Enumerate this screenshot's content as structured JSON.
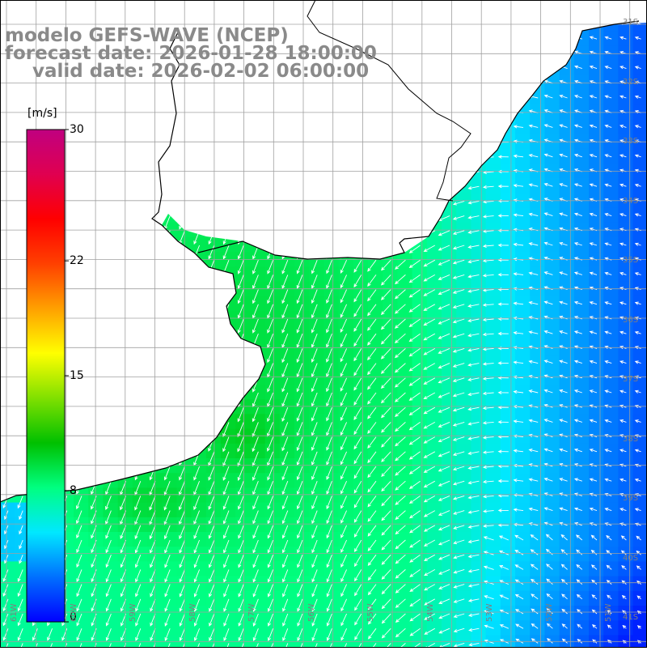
{
  "header": {
    "line1": "modelo GEFS-WAVE (NCEP)",
    "line2": "forecast date: 2026-01-28 18:00:00",
    "line3": "valid date: 2026-02-02 06:00:00"
  },
  "colorbar": {
    "unit": "[m/s]",
    "ticks": [
      "0",
      "8",
      "15",
      "22",
      "30"
    ],
    "min": 0,
    "max": 30,
    "stops": [
      "#0000ff",
      "#0070ff",
      "#00e8ff",
      "#00ff80",
      "#00c000",
      "#80e000",
      "#ffff00",
      "#ffa000",
      "#ff4000",
      "#ff0000",
      "#e00050",
      "#c00080"
    ]
  },
  "map": {
    "lat_labels": [
      "31S",
      "32S",
      "33S",
      "34S",
      "35S",
      "36S",
      "37S",
      "38S",
      "39S",
      "40S",
      "41S"
    ],
    "lon_labels": [
      "61W",
      "60W",
      "59W",
      "58W",
      "57W",
      "56W",
      "55W",
      "54W",
      "53W",
      "52W",
      "51W"
    ],
    "grid": "on",
    "land_color": "#ffffff",
    "arrow_color": "#ffffff",
    "grid_color": "#a0a0a0"
  }
}
